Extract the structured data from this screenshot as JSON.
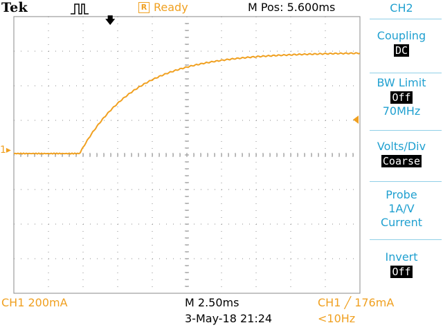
{
  "header": {
    "brand": "Tek",
    "trigger_icon": "pulse-waveform-icon",
    "status_box": "R",
    "status": "Ready",
    "m_pos": "M Pos: 5.600ms"
  },
  "menu": {
    "title": "CH2",
    "coupling_label": "Coupling",
    "coupling_value": "DC",
    "bw_label": "BW Limit",
    "bw_value": "Off",
    "bw_freq": "70MHz",
    "volts_label": "Volts/Div",
    "volts_value": "Coarse",
    "probe_label": "Probe",
    "probe_ratio": "1A/V",
    "probe_type": "Current",
    "invert_label": "Invert",
    "invert_value": "Off"
  },
  "markers": {
    "ch1": "1",
    "trigger_position_icon": "down-arrow-icon",
    "trigger_level_icon": "left-triangle-icon"
  },
  "footer": {
    "ch1_scale": "CH1  200mA",
    "timebase": "M 2.50ms",
    "trigger": "CH1 ╱ 176mA",
    "datetime": "3-May-18 21:24",
    "frequency": "<10Hz"
  },
  "colors": {
    "ch1": "#f0a020",
    "menu": "#20a0d0",
    "grid": "#888888"
  }
}
